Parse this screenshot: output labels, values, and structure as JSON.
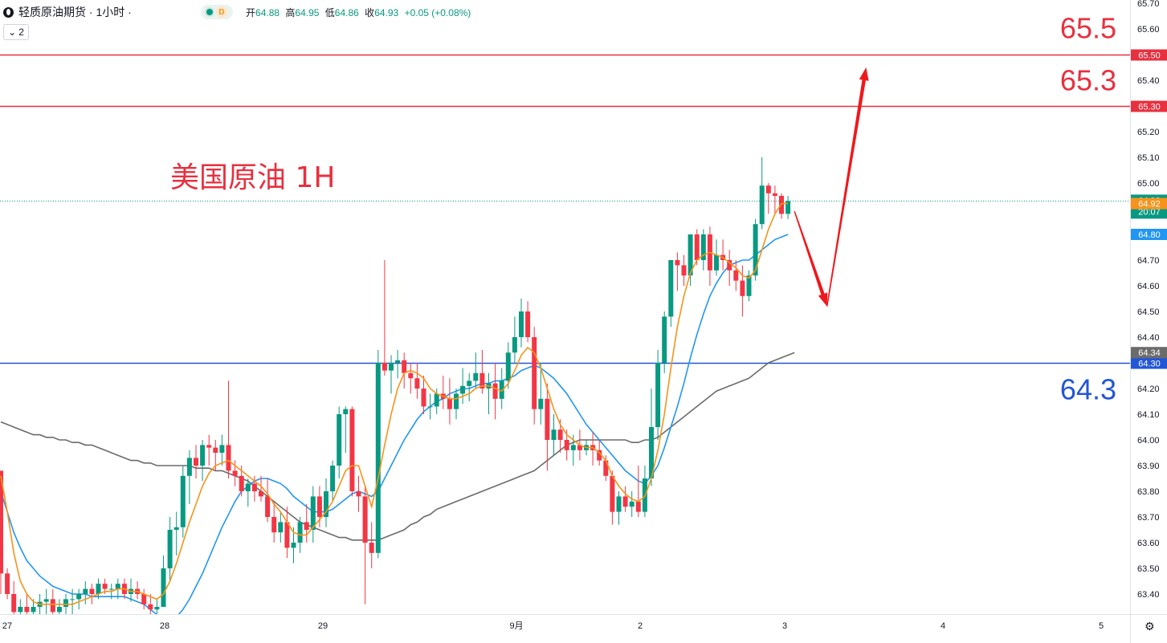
{
  "header": {
    "title": "轻质原油期货 · 1小时 ·",
    "status_letter": "D",
    "ohlc": [
      {
        "label": "开",
        "value": "64.88"
      },
      {
        "label": "高",
        "value": "64.95"
      },
      {
        "label": "低",
        "value": "64.86"
      },
      {
        "label": "收",
        "value": "64.93"
      }
    ],
    "change": "+0.05 (+0.08%)",
    "indicator_count": "2"
  },
  "chart_data": {
    "type": "candlestick",
    "title": "美国原油 1H",
    "ylim": [
      63.3,
      65.7
    ],
    "y_ticks": [
      "65.70",
      "65.60",
      "65.40",
      "65.20",
      "65.10",
      "65.00",
      "64.70",
      "64.60",
      "64.50",
      "64.40",
      "64.20",
      "64.10",
      "64.00",
      "63.90",
      "63.80",
      "63.70",
      "63.60",
      "63.50",
      "63.40"
    ],
    "x_ticks": [
      "27",
      "28",
      "29",
      "9月",
      "2",
      "3",
      "4",
      "5"
    ],
    "levels": [
      {
        "value": 65.5,
        "label": "65.5",
        "tag": "65.50",
        "color": "#e8303f"
      },
      {
        "value": 65.3,
        "label": "65.3",
        "tag": "65.30",
        "color": "#e8303f"
      },
      {
        "value": 64.3,
        "label": "64.3",
        "tag": "64.30",
        "color": "#2356d6"
      }
    ],
    "price_tags": [
      {
        "value": 64.93,
        "text": "64.93",
        "sub": "20:07",
        "color": "#089981"
      },
      {
        "value": 64.92,
        "text": "64.92",
        "color": "#f7931a"
      },
      {
        "value": 64.8,
        "text": "64.80",
        "color": "#2196f3"
      },
      {
        "value": 64.34,
        "text": "64.34",
        "color": "#6b6b6b"
      }
    ],
    "colors": {
      "up": "#089981",
      "down": "#f23645",
      "ma_fast": "#f7931a",
      "ma_mid": "#2196f3",
      "ma_slow": "#6b6b6b"
    },
    "candles": [
      [
        63.88,
        63.88,
        63.4,
        63.48
      ],
      [
        63.48,
        63.5,
        63.38,
        63.4
      ],
      [
        63.4,
        63.45,
        63.3,
        63.33
      ],
      [
        63.33,
        63.38,
        63.28,
        63.35
      ],
      [
        63.35,
        63.4,
        63.3,
        63.33
      ],
      [
        63.33,
        63.38,
        63.28,
        63.35
      ],
      [
        63.35,
        63.4,
        63.3,
        63.37
      ],
      [
        63.37,
        63.42,
        63.32,
        63.38
      ],
      [
        63.38,
        63.42,
        63.3,
        63.33
      ],
      [
        63.33,
        63.38,
        63.28,
        63.35
      ],
      [
        63.35,
        63.4,
        63.3,
        63.38
      ],
      [
        63.38,
        63.42,
        63.32,
        63.38
      ],
      [
        63.38,
        63.42,
        63.34,
        63.4
      ],
      [
        63.4,
        63.45,
        63.36,
        63.42
      ],
      [
        63.42,
        63.44,
        63.36,
        63.4
      ],
      [
        63.4,
        63.46,
        63.38,
        63.44
      ],
      [
        63.44,
        63.46,
        63.4,
        63.42
      ],
      [
        63.42,
        63.44,
        63.38,
        63.42
      ],
      [
        63.42,
        63.46,
        63.38,
        63.44
      ],
      [
        63.44,
        63.46,
        63.38,
        63.4
      ],
      [
        63.4,
        63.46,
        63.37,
        63.42
      ],
      [
        63.42,
        63.45,
        63.38,
        63.4
      ],
      [
        63.4,
        63.42,
        63.34,
        63.36
      ],
      [
        63.36,
        63.4,
        63.3,
        63.34
      ],
      [
        63.34,
        63.38,
        63.3,
        63.35
      ],
      [
        63.35,
        63.55,
        63.35,
        63.5
      ],
      [
        63.5,
        63.7,
        63.45,
        63.65
      ],
      [
        63.65,
        63.72,
        63.55,
        63.66
      ],
      [
        63.66,
        63.9,
        63.62,
        63.86
      ],
      [
        63.86,
        63.96,
        63.75,
        63.93
      ],
      [
        63.93,
        63.98,
        63.85,
        63.9
      ],
      [
        63.9,
        64.0,
        63.84,
        63.98
      ],
      [
        63.98,
        64.02,
        63.9,
        63.97
      ],
      [
        63.97,
        64.0,
        63.88,
        63.95
      ],
      [
        63.95,
        64.02,
        63.9,
        63.98
      ],
      [
        63.98,
        64.23,
        63.85,
        63.88
      ],
      [
        63.88,
        63.92,
        63.82,
        63.86
      ],
      [
        63.86,
        63.9,
        63.78,
        63.8
      ],
      [
        63.8,
        63.85,
        63.74,
        63.83
      ],
      [
        63.83,
        63.86,
        63.76,
        63.8
      ],
      [
        63.8,
        63.86,
        63.76,
        63.78
      ],
      [
        63.78,
        63.85,
        63.68,
        63.7
      ],
      [
        63.7,
        63.76,
        63.6,
        63.64
      ],
      [
        63.64,
        63.72,
        63.6,
        63.68
      ],
      [
        63.68,
        63.74,
        63.54,
        63.58
      ],
      [
        63.58,
        63.66,
        63.52,
        63.6
      ],
      [
        63.6,
        63.7,
        63.56,
        63.68
      ],
      [
        63.68,
        63.75,
        63.6,
        63.65
      ],
      [
        63.65,
        63.82,
        63.6,
        63.78
      ],
      [
        63.78,
        63.82,
        63.66,
        63.7
      ],
      [
        63.7,
        63.85,
        63.66,
        63.8
      ],
      [
        63.8,
        63.92,
        63.76,
        63.9
      ],
      [
        63.9,
        64.13,
        63.85,
        64.1
      ],
      [
        64.1,
        64.13,
        63.95,
        64.12
      ],
      [
        64.12,
        64.13,
        63.78,
        63.8
      ],
      [
        63.8,
        63.86,
        63.72,
        63.78
      ],
      [
        63.78,
        63.82,
        63.36,
        63.6
      ],
      [
        63.6,
        63.68,
        63.5,
        63.56
      ],
      [
        63.56,
        64.35,
        63.54,
        64.3
      ],
      [
        64.3,
        64.7,
        64.25,
        64.27
      ],
      [
        64.27,
        64.33,
        64.18,
        64.3
      ],
      [
        64.3,
        64.35,
        64.24,
        64.31
      ],
      [
        64.31,
        64.34,
        64.2,
        64.26
      ],
      [
        64.26,
        64.3,
        64.18,
        64.24
      ],
      [
        64.24,
        64.3,
        64.16,
        64.2
      ],
      [
        64.2,
        64.25,
        64.1,
        64.13
      ],
      [
        64.13,
        64.18,
        64.08,
        64.13
      ],
      [
        64.13,
        64.2,
        64.1,
        64.18
      ],
      [
        64.18,
        64.25,
        64.12,
        64.16
      ],
      [
        64.16,
        64.24,
        64.06,
        64.12
      ],
      [
        64.12,
        64.2,
        64.08,
        64.18
      ],
      [
        64.18,
        64.28,
        64.14,
        64.21
      ],
      [
        64.21,
        64.26,
        64.15,
        64.23
      ],
      [
        64.23,
        64.34,
        64.2,
        64.26
      ],
      [
        64.26,
        64.35,
        64.18,
        64.2
      ],
      [
        64.2,
        64.26,
        64.1,
        64.22
      ],
      [
        64.22,
        64.3,
        64.08,
        64.16
      ],
      [
        64.16,
        64.28,
        64.12,
        64.23
      ],
      [
        64.23,
        64.38,
        64.2,
        64.34
      ],
      [
        64.34,
        64.48,
        64.3,
        64.4
      ],
      [
        64.4,
        64.55,
        64.36,
        64.5
      ],
      [
        64.5,
        64.54,
        64.38,
        64.4
      ],
      [
        64.4,
        64.44,
        64.06,
        64.12
      ],
      [
        64.12,
        64.3,
        64.06,
        64.16
      ],
      [
        64.16,
        64.22,
        63.88,
        64.0
      ],
      [
        64.0,
        64.1,
        63.94,
        64.04
      ],
      [
        64.04,
        64.08,
        63.95,
        64.0
      ],
      [
        64.0,
        64.04,
        63.92,
        63.96
      ],
      [
        63.96,
        64.02,
        63.9,
        63.98
      ],
      [
        63.98,
        64.04,
        63.92,
        63.96
      ],
      [
        63.96,
        64.0,
        63.94,
        63.98
      ],
      [
        63.98,
        64.03,
        63.9,
        63.96
      ],
      [
        63.96,
        64.0,
        63.9,
        63.92
      ],
      [
        63.92,
        63.94,
        63.84,
        63.86
      ],
      [
        63.86,
        63.88,
        63.67,
        63.72
      ],
      [
        63.72,
        63.8,
        63.67,
        63.78
      ],
      [
        63.78,
        63.82,
        63.72,
        63.74
      ],
      [
        63.74,
        63.8,
        63.7,
        63.76
      ],
      [
        63.76,
        63.9,
        63.7,
        63.72
      ],
      [
        63.72,
        63.9,
        63.7,
        63.85
      ],
      [
        63.85,
        64.2,
        63.82,
        64.05
      ],
      [
        64.05,
        64.35,
        64.0,
        64.3
      ],
      [
        64.3,
        64.5,
        64.26,
        64.48
      ],
      [
        64.48,
        64.7,
        64.44,
        64.7
      ],
      [
        64.7,
        64.73,
        64.58,
        64.68
      ],
      [
        64.68,
        64.72,
        64.6,
        64.64
      ],
      [
        64.64,
        64.8,
        64.6,
        64.8
      ],
      [
        64.8,
        64.82,
        64.68,
        64.7
      ],
      [
        64.7,
        64.82,
        64.66,
        64.8
      ],
      [
        64.8,
        64.83,
        64.6,
        64.66
      ],
      [
        64.66,
        64.78,
        64.64,
        64.72
      ],
      [
        64.72,
        64.78,
        64.66,
        64.7
      ],
      [
        64.7,
        64.74,
        64.6,
        64.66
      ],
      [
        64.66,
        64.7,
        64.58,
        64.62
      ],
      [
        64.62,
        64.68,
        64.48,
        64.56
      ],
      [
        64.56,
        64.66,
        64.54,
        64.64
      ],
      [
        64.64,
        64.86,
        64.62,
        64.84
      ],
      [
        64.84,
        65.1,
        64.82,
        64.99
      ],
      [
        64.99,
        65.0,
        64.88,
        64.96
      ],
      [
        64.96,
        64.99,
        64.88,
        64.95
      ],
      [
        64.95,
        64.96,
        64.86,
        64.88
      ],
      [
        64.88,
        64.95,
        64.86,
        64.93
      ]
    ],
    "ma_fast": [
      63.86,
      63.72,
      63.56,
      63.45,
      63.4,
      63.37,
      63.36,
      63.36,
      63.36,
      63.36,
      63.36,
      63.36,
      63.37,
      63.38,
      63.39,
      63.4,
      63.41,
      63.41,
      63.42,
      63.42,
      63.41,
      63.41,
      63.4,
      63.39,
      63.38,
      63.4,
      63.45,
      63.52,
      63.6,
      63.68,
      63.75,
      63.82,
      63.87,
      63.9,
      63.91,
      63.92,
      63.9,
      63.88,
      63.86,
      63.84,
      63.82,
      63.79,
      63.75,
      63.72,
      63.68,
      63.64,
      63.63,
      63.63,
      63.66,
      63.69,
      63.72,
      63.76,
      63.82,
      63.88,
      63.9,
      63.9,
      63.82,
      63.74,
      63.85,
      63.98,
      64.1,
      64.2,
      64.26,
      64.27,
      64.26,
      64.24,
      64.2,
      64.18,
      64.17,
      64.16,
      64.16,
      64.17,
      64.18,
      64.2,
      64.21,
      64.21,
      64.2,
      64.19,
      64.22,
      64.27,
      64.33,
      64.36,
      64.34,
      64.28,
      64.2,
      64.12,
      64.06,
      64.02,
      64.0,
      63.98,
      63.97,
      63.97,
      63.95,
      63.92,
      63.86,
      63.82,
      63.79,
      63.77,
      63.76,
      63.78,
      63.85,
      63.96,
      64.1,
      64.28,
      64.44,
      64.56,
      64.65,
      64.7,
      64.72,
      64.73,
      64.72,
      64.71,
      64.69,
      64.67,
      64.64,
      64.63,
      64.66,
      64.74,
      64.82,
      64.88,
      64.92,
      64.92
    ],
    "ma_mid": [
      63.8,
      63.72,
      63.64,
      63.58,
      63.53,
      63.5,
      63.47,
      63.45,
      63.43,
      63.42,
      63.41,
      63.4,
      63.4,
      63.4,
      63.39,
      63.39,
      63.39,
      63.39,
      63.39,
      63.39,
      63.38,
      63.37,
      63.36,
      63.34,
      63.32,
      63.3,
      63.3,
      63.31,
      63.34,
      63.38,
      63.43,
      63.48,
      63.54,
      63.6,
      63.66,
      63.71,
      63.76,
      63.8,
      63.82,
      63.84,
      63.85,
      63.85,
      63.84,
      63.83,
      63.81,
      63.78,
      63.76,
      63.74,
      63.72,
      63.72,
      63.72,
      63.73,
      63.75,
      63.77,
      63.79,
      63.8,
      63.79,
      63.78,
      63.8,
      63.85,
      63.9,
      63.95,
      64.0,
      64.04,
      64.08,
      64.11,
      64.13,
      64.15,
      64.16,
      64.18,
      64.19,
      64.2,
      64.2,
      64.21,
      64.22,
      64.22,
      64.23,
      64.23,
      64.24,
      64.25,
      64.27,
      64.28,
      64.29,
      64.28,
      64.26,
      64.24,
      64.21,
      64.18,
      64.14,
      64.1,
      64.06,
      64.03,
      64.0,
      63.97,
      63.94,
      63.91,
      63.88,
      63.86,
      63.84,
      63.83,
      63.86,
      63.9,
      63.97,
      64.05,
      64.13,
      64.22,
      64.32,
      64.41,
      64.49,
      64.56,
      64.61,
      64.65,
      64.68,
      64.69,
      64.7,
      64.7,
      64.72,
      64.74,
      64.76,
      64.78,
      64.79,
      64.8
    ],
    "ma_slow": [
      64.07,
      64.06,
      64.05,
      64.04,
      64.03,
      64.02,
      64.02,
      64.01,
      64.01,
      64.0,
      64.0,
      63.99,
      63.99,
      63.98,
      63.98,
      63.97,
      63.96,
      63.95,
      63.94,
      63.93,
      63.92,
      63.92,
      63.91,
      63.91,
      63.9,
      63.9,
      63.9,
      63.9,
      63.9,
      63.9,
      63.89,
      63.89,
      63.89,
      63.88,
      63.88,
      63.87,
      63.86,
      63.85,
      63.84,
      63.82,
      63.8,
      63.78,
      63.76,
      63.74,
      63.72,
      63.7,
      63.68,
      63.67,
      63.66,
      63.65,
      63.64,
      63.63,
      63.62,
      63.62,
      63.61,
      63.61,
      63.61,
      63.61,
      63.61,
      63.62,
      63.63,
      63.64,
      63.65,
      63.67,
      63.68,
      63.7,
      63.71,
      63.73,
      63.74,
      63.75,
      63.76,
      63.77,
      63.78,
      63.79,
      63.8,
      63.81,
      63.82,
      63.83,
      63.84,
      63.85,
      63.86,
      63.87,
      63.88,
      63.9,
      63.92,
      63.94,
      63.96,
      63.98,
      63.99,
      64.0,
      64.0,
      64.0,
      64.0,
      64.0,
      64.0,
      64.0,
      64.0,
      63.99,
      63.99,
      64.0,
      64.0,
      64.01,
      64.03,
      64.05,
      64.07,
      64.09,
      64.11,
      64.13,
      64.15,
      64.17,
      64.19,
      64.2,
      64.21,
      64.22,
      64.23,
      64.24,
      64.26,
      64.28,
      64.3,
      64.31,
      64.32,
      64.33,
      64.34
    ],
    "annotations": [
      {
        "type": "arrow",
        "from": [
          122,
          64.89
        ],
        "to": [
          127,
          64.52
        ],
        "color": "#f0181c"
      },
      {
        "type": "arrow",
        "from": [
          127,
          64.52
        ],
        "to": [
          133,
          65.45
        ],
        "color": "#f0181c"
      }
    ]
  }
}
